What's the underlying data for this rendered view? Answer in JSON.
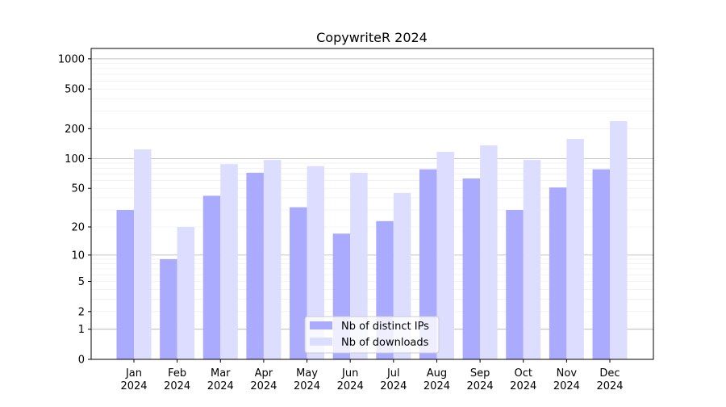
{
  "chart_data": {
    "type": "bar",
    "title": "CopywriteR 2024",
    "xlabel": "",
    "ylabel": "",
    "yscale": "symlog (log10(1+y))",
    "ylim": [
      0,
      1270
    ],
    "yticks": [
      0,
      1,
      2,
      5,
      10,
      20,
      50,
      100,
      200,
      500,
      1000
    ],
    "grid": true,
    "legend_position": "bottom-center",
    "categories": [
      "Jan\n2024",
      "Feb\n2024",
      "Mar\n2024",
      "Apr\n2024",
      "May\n2024",
      "Jun\n2024",
      "Jul\n2024",
      "Aug\n2024",
      "Sep\n2024",
      "Oct\n2024",
      "Nov\n2024",
      "Dec\n2024"
    ],
    "series": [
      {
        "name": "Nb of distinct IPs",
        "color": "#aaaaff",
        "values": [
          30,
          9,
          42,
          72,
          32,
          17,
          23,
          78,
          63,
          30,
          51,
          78
        ]
      },
      {
        "name": "Nb of downloads",
        "color": "#ddddff",
        "values": [
          124,
          20,
          88,
          97,
          84,
          72,
          45,
          117,
          136,
          97,
          158,
          238
        ]
      }
    ]
  }
}
